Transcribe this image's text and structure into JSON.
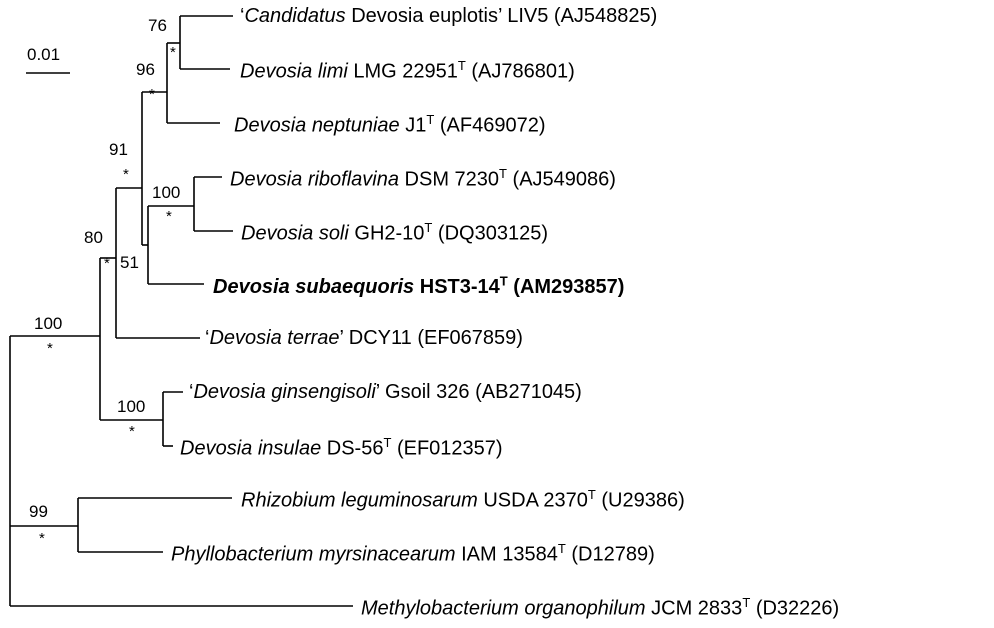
{
  "scale_bar": {
    "label": "0.01"
  },
  "taxa": [
    {
      "open_quote": "‘",
      "italic": "Candidatus",
      "plain_before": " Devosia euplotis",
      "close_quote": "’",
      "strain": " LIV5",
      "type": "",
      "accession": " (AJ548825)",
      "bold": false
    },
    {
      "open_quote": "",
      "italic": "Devosia limi",
      "plain_before": "",
      "close_quote": "",
      "strain": " LMG 22951",
      "type": "T",
      "accession": " (AJ786801)",
      "bold": false
    },
    {
      "open_quote": "",
      "italic": "Devosia neptuniae",
      "plain_before": "",
      "close_quote": "",
      "strain": " J1",
      "type": "T",
      "accession": " (AF469072)",
      "bold": false
    },
    {
      "open_quote": "",
      "italic": "Devosia riboflavina",
      "plain_before": "",
      "close_quote": "",
      "strain": " DSM 7230",
      "type": "T",
      "accession": " (AJ549086)",
      "bold": false
    },
    {
      "open_quote": "",
      "italic": "Devosia soli",
      "plain_before": "",
      "close_quote": "",
      "strain": " GH2-10",
      "type": "T",
      "accession": " (DQ303125)",
      "bold": false
    },
    {
      "open_quote": "",
      "italic": "Devosia subaequoris",
      "plain_before": "",
      "close_quote": "",
      "strain": " HST3-14",
      "type": "T",
      "accession": " (AM293857)",
      "bold": true
    },
    {
      "open_quote": "‘",
      "italic": "Devosia terrae",
      "plain_before": "",
      "close_quote": "’",
      "strain": " DCY11",
      "type": "",
      "accession": " (EF067859)",
      "bold": false
    },
    {
      "open_quote": "‘",
      "italic": "Devosia ginsengisoli",
      "plain_before": "",
      "close_quote": "’",
      "strain": " Gsoil 326",
      "type": "",
      "accession": " (AB271045)",
      "bold": false
    },
    {
      "open_quote": "",
      "italic": "Devosia insulae",
      "plain_before": "",
      "close_quote": "",
      "strain": " DS-56",
      "type": "T",
      "accession": " (EF012357)",
      "bold": false
    },
    {
      "open_quote": "",
      "italic": "Rhizobium leguminosarum",
      "plain_before": "",
      "close_quote": "",
      "strain": " USDA 2370",
      "type": "T",
      "accession": " (U29386)",
      "bold": false
    },
    {
      "open_quote": "",
      "italic": "Phyllobacterium myrsinacearum",
      "plain_before": "",
      "close_quote": "",
      "strain": " IAM 13584",
      "type": "T",
      "accession": " (D12789)",
      "bold": false
    },
    {
      "open_quote": "",
      "italic": "Methylobacterium organophilum",
      "plain_before": "",
      "close_quote": "",
      "strain": " JCM 2833",
      "type": "T",
      "accession": " (D32226)",
      "bold": false
    }
  ],
  "bootstraps": [
    "76",
    "96",
    "91",
    "100",
    "80",
    "51",
    "100",
    "100",
    "99"
  ],
  "asterisk": "*"
}
